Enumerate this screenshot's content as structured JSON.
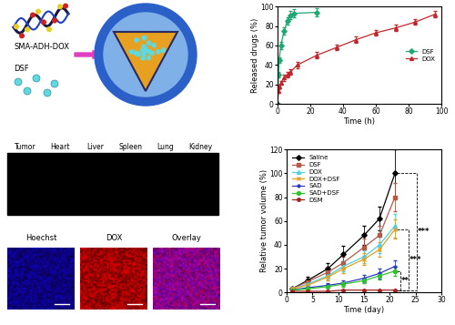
{
  "diagram": {
    "polymer_label": "SMA-ADH-DOX",
    "drug_label": "DSF"
  },
  "imaging": {
    "organs": [
      "Tumor",
      "Heart",
      "Liver",
      "Spleen",
      "Lung",
      "Kidney"
    ],
    "channels": [
      "Hoechst",
      "DOX",
      "Overlay"
    ]
  },
  "chart_data": [
    {
      "type": "line",
      "xlabel": "Time (h)",
      "ylabel": "Released drugs (%)",
      "xlim": [
        0,
        100
      ],
      "xticks": [
        0,
        20,
        40,
        60,
        80,
        100
      ],
      "ylim": [
        0,
        100
      ],
      "yticks": [
        0,
        20,
        40,
        60,
        80,
        100
      ],
      "legend": "center right",
      "series": [
        {
          "name": "DSF",
          "color": "#1fa872",
          "marker": "diamond",
          "x": [
            0,
            0.5,
            1,
            2,
            4,
            6,
            8,
            10,
            24
          ],
          "values": [
            0,
            30,
            45,
            60,
            75,
            85,
            91,
            93,
            94
          ],
          "errors": [
            0,
            3,
            3,
            4,
            4,
            4,
            4,
            4,
            4
          ]
        },
        {
          "name": "DOX",
          "color": "#c0272d",
          "marker": "triangle",
          "x": [
            0,
            0.5,
            1,
            2,
            4,
            6,
            8,
            12,
            24,
            36,
            48,
            60,
            72,
            84,
            96
          ],
          "values": [
            0,
            13,
            18,
            22,
            27,
            30,
            33,
            40,
            50,
            58,
            66,
            73,
            78,
            84,
            92
          ],
          "errors": [
            0,
            2,
            2,
            2,
            3,
            3,
            3,
            3,
            3,
            3,
            3,
            3,
            3,
            3,
            3
          ]
        }
      ]
    },
    {
      "type": "line",
      "xlabel": "Time (day)",
      "ylabel": "Relative tumor volume (%)",
      "xlim": [
        0,
        30
      ],
      "xticks": [
        0,
        5,
        10,
        15,
        20,
        25,
        30
      ],
      "ylim": [
        0,
        120
      ],
      "yticks": [
        0,
        20,
        40,
        60,
        80,
        100,
        120
      ],
      "legend": "upper left",
      "x": [
        1,
        4,
        8,
        11,
        15,
        18,
        21
      ],
      "series": [
        {
          "name": "Saline",
          "color": "#000000",
          "marker": "diamond",
          "values": [
            3,
            10,
            20,
            32,
            48,
            62,
            100
          ],
          "errors": [
            0,
            3,
            5,
            7,
            8,
            10,
            20
          ]
        },
        {
          "name": "DSF",
          "color": "#b05a4a",
          "marker": "square",
          "values": [
            3,
            9,
            17,
            25,
            38,
            48,
            80
          ],
          "errors": [
            0,
            2,
            4,
            5,
            7,
            8,
            12
          ]
        },
        {
          "name": "DOX",
          "color": "#4fd0e0",
          "marker": "triangle",
          "values": [
            3,
            7,
            14,
            22,
            30,
            40,
            56
          ],
          "errors": [
            0,
            2,
            3,
            4,
            5,
            7,
            10
          ]
        },
        {
          "name": "DOX+DSF",
          "color": "#e8a020",
          "marker": "cross",
          "values": [
            3,
            6,
            13,
            20,
            28,
            36,
            53
          ],
          "errors": [
            0,
            2,
            3,
            4,
            5,
            6,
            8
          ]
        },
        {
          "name": "SAD",
          "color": "#2a3cc0",
          "marker": "star",
          "values": [
            2,
            4,
            6,
            8,
            12,
            16,
            22
          ],
          "errors": [
            0,
            1,
            2,
            2,
            3,
            4,
            5
          ]
        },
        {
          "name": "SAD+DSF",
          "color": "#30c030",
          "marker": "circle",
          "values": [
            2,
            3,
            5,
            7,
            10,
            14,
            18
          ],
          "errors": [
            0,
            1,
            1,
            2,
            2,
            3,
            4
          ]
        },
        {
          "name": "DSM",
          "color": "#a02020",
          "marker": "pentagon",
          "values": [
            1,
            1,
            1,
            2,
            2,
            2,
            2
          ],
          "errors": [
            0,
            0.5,
            0.5,
            0.5,
            0.5,
            0.5,
            0.5
          ]
        }
      ],
      "annotations": [
        {
          "text": "**",
          "between": [
            "SAD+DSF",
            "DSM"
          ]
        },
        {
          "text": "***",
          "between": [
            "DOX+DSF",
            "DSM"
          ]
        },
        {
          "text": "***",
          "between": [
            "Saline",
            "DSM"
          ]
        }
      ]
    }
  ]
}
